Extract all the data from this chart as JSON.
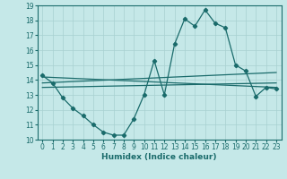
{
  "xlabel": "Humidex (Indice chaleur)",
  "ylabel": "",
  "xlim": [
    -0.5,
    23.5
  ],
  "ylim": [
    10,
    19
  ],
  "yticks": [
    10,
    11,
    12,
    13,
    14,
    15,
    16,
    17,
    18,
    19
  ],
  "xticks": [
    0,
    1,
    2,
    3,
    4,
    5,
    6,
    7,
    8,
    9,
    10,
    11,
    12,
    13,
    14,
    15,
    16,
    17,
    18,
    19,
    20,
    21,
    22,
    23
  ],
  "bg_color": "#c5e8e8",
  "line_color": "#1a6b6b",
  "grid_color": "#a8d0d0",
  "line1_x": [
    0,
    1,
    2,
    3,
    4,
    5,
    6,
    7,
    8,
    9,
    10,
    11,
    12,
    13,
    14,
    15,
    16,
    17,
    18,
    19,
    20,
    21,
    22,
    23
  ],
  "line1_y": [
    14.3,
    13.8,
    12.8,
    12.1,
    11.6,
    11.0,
    10.5,
    10.3,
    10.3,
    11.4,
    13.0,
    15.3,
    13.0,
    16.4,
    18.1,
    17.6,
    18.7,
    17.8,
    17.5,
    15.0,
    14.6,
    12.9,
    13.5,
    13.4
  ],
  "line2_x": [
    0,
    23
  ],
  "line2_y": [
    13.5,
    13.8
  ],
  "line3_x": [
    0,
    23
  ],
  "line3_y": [
    13.8,
    14.5
  ],
  "line4_x": [
    0,
    23
  ],
  "line4_y": [
    14.2,
    13.5
  ]
}
